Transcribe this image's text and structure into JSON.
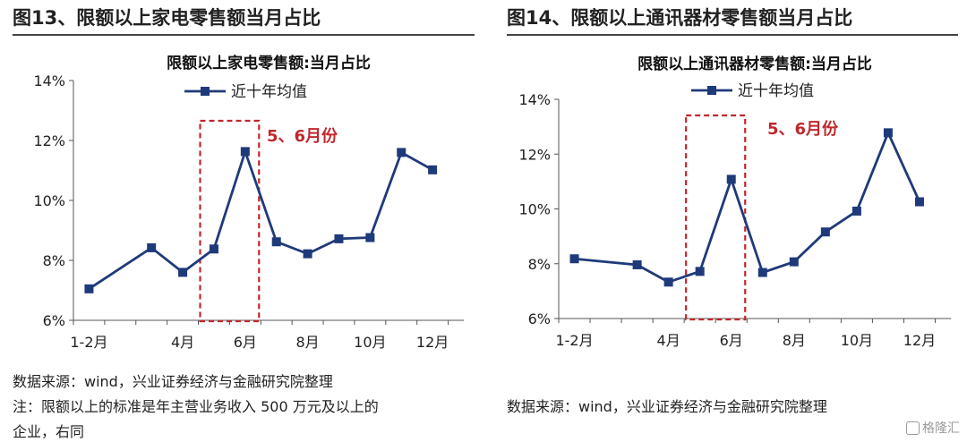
{
  "figures": [
    {
      "title": "图13、限额以上家电零售额当月占比",
      "source": "数据来源：wind，兴业证券经济与金融研究院整理",
      "note_line1": "注：限额以上的标准是年主营业务收入 500 万元及以上的",
      "note_line2": "企业，右同"
    },
    {
      "title": "图14、限额以上通讯器材零售额当月占比",
      "source": "数据来源：wind，兴业证券经济与金融研究院整理"
    }
  ],
  "chart_data": [
    {
      "type": "line",
      "title": "限额以上家电零售额:当月占比",
      "series": [
        {
          "name": "近十年均值",
          "values": [
            7.05,
            8.42,
            7.6,
            8.38,
            11.63,
            8.62,
            8.22,
            8.72,
            8.76,
            11.6,
            11.02
          ],
          "color": "#1f3a7a"
        }
      ],
      "x_positions": [
        1,
        3,
        4,
        5,
        6,
        7,
        8,
        9,
        10,
        11,
        12
      ],
      "x_tick_values": [
        1,
        4,
        6,
        8,
        10,
        12
      ],
      "x_tick_labels": [
        "1-2月",
        "4月",
        "6月",
        "8月",
        "10月",
        "12月"
      ],
      "ylim": [
        6,
        14
      ],
      "y_ticks": [
        6,
        8,
        10,
        12,
        14
      ],
      "y_tick_labels": [
        "6%",
        "8%",
        "10%",
        "12%",
        "14%"
      ],
      "legend_position": "top-center",
      "annotation": {
        "text": "5、6月份",
        "highlight_range": [
          5,
          6
        ],
        "color": "#c0282d"
      }
    },
    {
      "type": "line",
      "title": "限额以上通讯器材零售额:当月占比",
      "series": [
        {
          "name": "近十年均值",
          "values": [
            8.18,
            7.96,
            7.33,
            7.72,
            11.08,
            7.68,
            8.07,
            9.16,
            9.92,
            12.78,
            10.26
          ],
          "color": "#1f3a7a"
        }
      ],
      "x_positions": [
        1,
        3,
        4,
        5,
        6,
        7,
        8,
        9,
        10,
        11,
        12
      ],
      "x_tick_values": [
        1,
        4,
        6,
        8,
        10,
        12
      ],
      "x_tick_labels": [
        "1-2月",
        "4月",
        "6月",
        "8月",
        "10月",
        "12月"
      ],
      "ylim": [
        6,
        14
      ],
      "y_ticks": [
        6,
        8,
        10,
        12,
        14
      ],
      "y_tick_labels": [
        "6%",
        "8%",
        "10%",
        "12%",
        "14%"
      ],
      "legend_position": "top-center",
      "annotation": {
        "text": "5、6月份",
        "highlight_range": [
          5,
          6
        ],
        "color": "#c0282d"
      }
    }
  ],
  "watermark": {
    "text": "格隆汇"
  }
}
